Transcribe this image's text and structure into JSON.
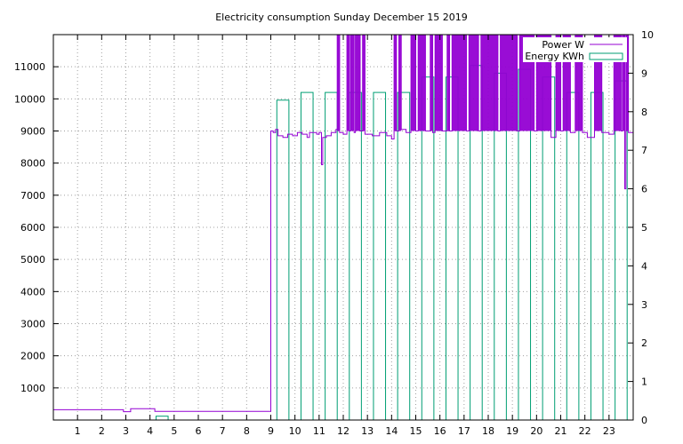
{
  "chart_data": {
    "type": "bar+line",
    "title": "Electricity consumption Sunday December 15 2019",
    "xlabel": "",
    "ylabel": "",
    "y2label": "",
    "xlim": [
      0,
      24
    ],
    "ylim": [
      0,
      12000
    ],
    "y2lim": [
      0,
      10
    ],
    "x_ticks": [
      1,
      2,
      3,
      4,
      5,
      6,
      7,
      8,
      9,
      10,
      11,
      12,
      13,
      14,
      15,
      16,
      17,
      18,
      19,
      20,
      21,
      22,
      23
    ],
    "y_ticks": [
      1000,
      2000,
      3000,
      4000,
      5000,
      6000,
      7000,
      8000,
      9000,
      10000,
      11000
    ],
    "y2_ticks": [
      0,
      1,
      2,
      3,
      4,
      5,
      6,
      7,
      8,
      9,
      10
    ],
    "grid": true,
    "legend_position": "top-right",
    "colors": {
      "power": "#9400d3",
      "energy": "#009e73",
      "grid": "#a0a0a0"
    },
    "series": [
      {
        "name": "Power W",
        "axis": "left",
        "style": "steps",
        "points": [
          [
            0,
            320
          ],
          [
            2.9,
            320
          ],
          [
            2.9,
            260
          ],
          [
            3.2,
            260
          ],
          [
            3.2,
            350
          ],
          [
            4.2,
            350
          ],
          [
            4.2,
            270
          ],
          [
            9.0,
            270
          ],
          [
            9.0,
            9000
          ],
          [
            9.1,
            8950
          ],
          [
            9.2,
            9050
          ],
          [
            9.3,
            8850
          ],
          [
            9.5,
            8800
          ],
          [
            9.7,
            8900
          ],
          [
            9.9,
            8850
          ],
          [
            10.1,
            8950
          ],
          [
            10.3,
            8900
          ],
          [
            10.5,
            8800
          ],
          [
            10.6,
            8950
          ],
          [
            10.9,
            8900
          ],
          [
            11.0,
            8950
          ],
          [
            11.1,
            7950
          ],
          [
            11.15,
            8800
          ],
          [
            11.3,
            8850
          ],
          [
            11.5,
            8950
          ],
          [
            11.7,
            9050
          ],
          [
            11.75,
            12000
          ],
          [
            11.85,
            8950
          ],
          [
            12.0,
            8900
          ],
          [
            12.15,
            12000
          ],
          [
            12.25,
            9000
          ],
          [
            12.3,
            12000
          ],
          [
            12.45,
            8950
          ],
          [
            12.5,
            12000
          ],
          [
            12.7,
            9000
          ],
          [
            12.8,
            12000
          ],
          [
            12.9,
            8900
          ],
          [
            13.2,
            8850
          ],
          [
            13.5,
            8950
          ],
          [
            13.8,
            8850
          ],
          [
            14.0,
            8750
          ],
          [
            14.1,
            12000
          ],
          [
            14.2,
            9000
          ],
          [
            14.3,
            12000
          ],
          [
            14.4,
            9050
          ],
          [
            14.6,
            8950
          ],
          [
            14.8,
            12000
          ],
          [
            15.0,
            9000
          ],
          [
            15.1,
            12000
          ],
          [
            15.4,
            9000
          ],
          [
            15.6,
            12000
          ],
          [
            15.7,
            8950
          ],
          [
            15.8,
            12000
          ],
          [
            16.1,
            9000
          ],
          [
            16.3,
            12000
          ],
          [
            16.4,
            9000
          ],
          [
            16.5,
            12000
          ],
          [
            17.1,
            9000
          ],
          [
            17.2,
            12000
          ],
          [
            17.6,
            9000
          ],
          [
            17.7,
            12000
          ],
          [
            18.4,
            9000
          ],
          [
            18.5,
            12000
          ],
          [
            19.2,
            9000
          ],
          [
            19.3,
            12000
          ],
          [
            19.9,
            9000
          ],
          [
            20.0,
            12000
          ],
          [
            20.6,
            8800
          ],
          [
            20.8,
            12000
          ],
          [
            21.0,
            9000
          ],
          [
            21.1,
            12000
          ],
          [
            21.4,
            8950
          ],
          [
            21.6,
            12000
          ],
          [
            21.9,
            8950
          ],
          [
            22.1,
            8800
          ],
          [
            22.4,
            12000
          ],
          [
            22.7,
            8950
          ],
          [
            23.0,
            8900
          ],
          [
            23.2,
            12000
          ],
          [
            23.5,
            9000
          ],
          [
            23.55,
            12000
          ],
          [
            23.65,
            7200
          ],
          [
            23.7,
            12000
          ],
          [
            23.8,
            8950
          ],
          [
            24.0,
            8950
          ]
        ]
      },
      {
        "name": "Energy KWh",
        "axis": "right",
        "style": "boxes",
        "hours": [
          0,
          1,
          2,
          3,
          4,
          5,
          6,
          7,
          8,
          9,
          10,
          11,
          12,
          13,
          14,
          15,
          16,
          17,
          18,
          19,
          20,
          21,
          22,
          23
        ],
        "values": [
          0,
          0,
          0,
          0,
          0.1,
          0,
          0,
          0,
          0,
          8.3,
          8.5,
          8.5,
          8.5,
          8.5,
          8.5,
          8.9,
          8.9,
          9.2,
          9.0,
          9.1,
          8.9,
          8.5,
          8.5,
          8.8
        ]
      }
    ]
  }
}
